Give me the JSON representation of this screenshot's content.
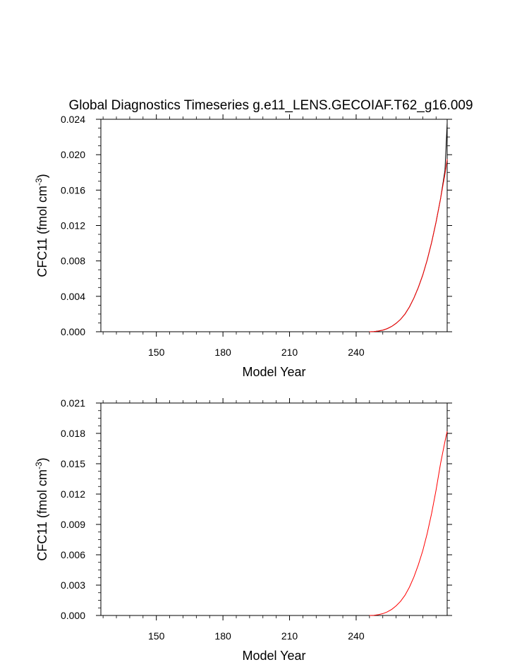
{
  "title": "Global Diagnostics Timeseries g.e11_LENS.GECOIAF.T62_g16.009",
  "chart_data": [
    {
      "type": "line",
      "xlabel": "Model Year",
      "ylabel": "CFC11 (fmol cm",
      "ylabel_sup": "-3",
      "ylabel_close": ")",
      "xlim": [
        125,
        281
      ],
      "ylim": [
        0,
        0.024
      ],
      "xticks": [
        150,
        180,
        210,
        240
      ],
      "xtick_labels": [
        "150",
        "180",
        "210",
        "240"
      ],
      "yticks": [
        0,
        0.004,
        0.008,
        0.012,
        0.016,
        0.02,
        0.024
      ],
      "ytick_labels": [
        "0.000",
        "0.004",
        "0.008",
        "0.012",
        "0.016",
        "0.020",
        "0.024"
      ],
      "grid": false,
      "series": [
        {
          "color": "#000000",
          "x": [
            246,
            248,
            250,
            252,
            254,
            256,
            258,
            260,
            262,
            264,
            266,
            268,
            270,
            272,
            274,
            276,
            278,
            280,
            281
          ],
          "y": [
            0,
            2e-05,
            8e-05,
            0.00018,
            0.00035,
            0.0006,
            0.00095,
            0.0014,
            0.002,
            0.0028,
            0.0038,
            0.005,
            0.0064,
            0.0081,
            0.0101,
            0.0124,
            0.015,
            0.0182,
            0.0236
          ]
        },
        {
          "color": "#ff0000",
          "x": [
            246,
            248,
            250,
            252,
            254,
            256,
            258,
            260,
            262,
            264,
            266,
            268,
            270,
            272,
            274,
            276,
            278,
            280,
            281
          ],
          "y": [
            0,
            2e-05,
            8e-05,
            0.00018,
            0.00035,
            0.0006,
            0.00095,
            0.0014,
            0.002,
            0.0028,
            0.0038,
            0.005,
            0.0064,
            0.0081,
            0.0101,
            0.0124,
            0.015,
            0.0178,
            0.0195
          ]
        }
      ]
    },
    {
      "type": "line",
      "xlabel": "Model Year",
      "ylabel": "CFC11 (fmol cm",
      "ylabel_sup": "-3",
      "ylabel_close": ")",
      "xlim": [
        125,
        281
      ],
      "ylim": [
        0,
        0.021
      ],
      "xticks": [
        150,
        180,
        210,
        240
      ],
      "xtick_labels": [
        "150",
        "180",
        "210",
        "240"
      ],
      "yticks": [
        0,
        0.003,
        0.006,
        0.009,
        0.012,
        0.015,
        0.018,
        0.021
      ],
      "ytick_labels": [
        "0.000",
        "0.003",
        "0.006",
        "0.009",
        "0.012",
        "0.015",
        "0.018",
        "0.021"
      ],
      "grid": false,
      "series": [
        {
          "color": "#ff0000",
          "x": [
            246,
            248,
            250,
            252,
            254,
            256,
            258,
            260,
            262,
            264,
            266,
            268,
            270,
            272,
            274,
            276,
            278,
            280,
            281
          ],
          "y": [
            0,
            2e-05,
            8e-05,
            0.00018,
            0.00035,
            0.0006,
            0.00095,
            0.0014,
            0.002,
            0.0028,
            0.0038,
            0.005,
            0.0064,
            0.0081,
            0.0101,
            0.0124,
            0.015,
            0.0172,
            0.0182
          ]
        }
      ]
    }
  ]
}
